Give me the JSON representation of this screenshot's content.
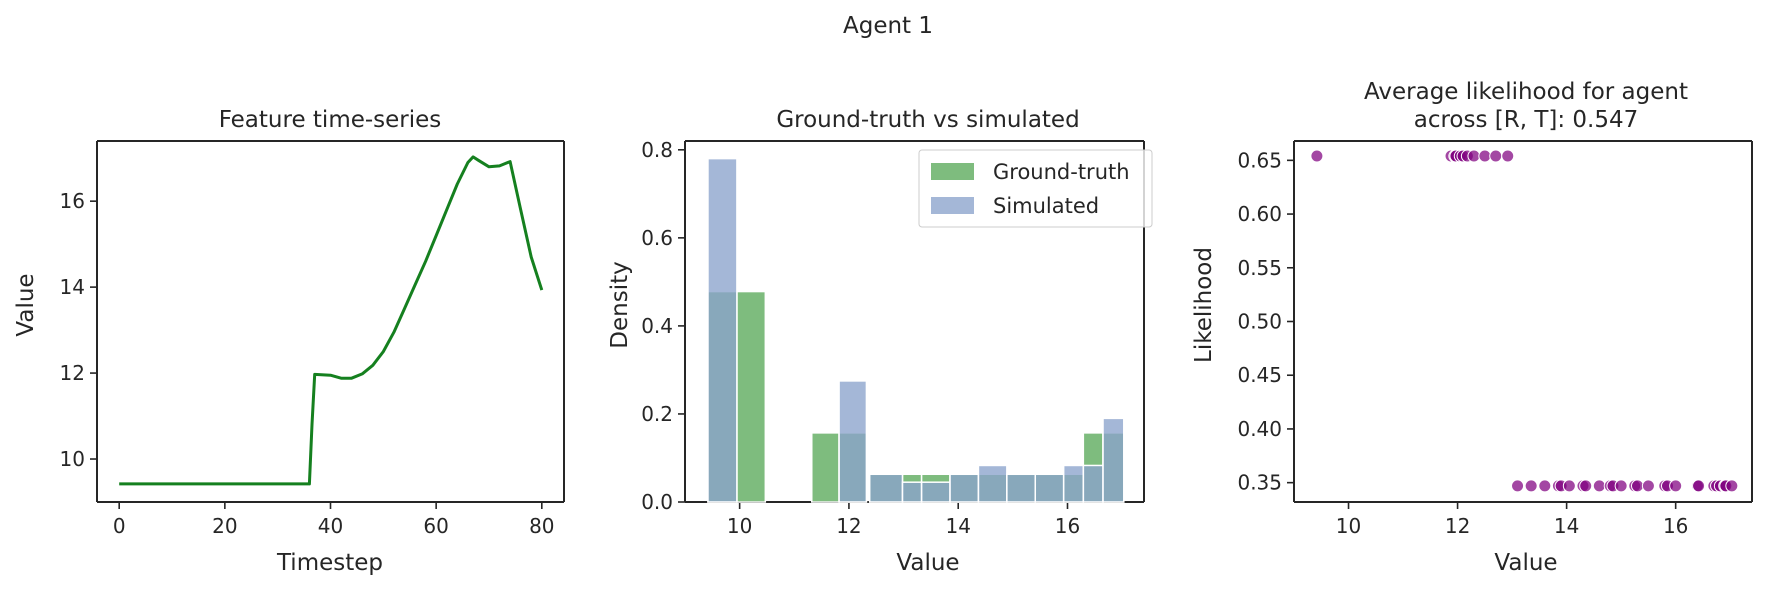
{
  "suptitle": "Agent 1",
  "colors": {
    "line": "#15801f",
    "ground_truth": "#5aa95a",
    "simulated": "#8aa3cc",
    "scatter": "#800080"
  },
  "chart_data": [
    {
      "type": "line",
      "title": "Feature time-series",
      "xlabel": "Timestep",
      "ylabel": "Value",
      "xlim": [
        -4.2,
        84.2
      ],
      "ylim": [
        9.0,
        17.4
      ],
      "xticks": [
        "0",
        "20",
        "40",
        "60",
        "80"
      ],
      "yticks": [
        "10",
        "12",
        "14",
        "16"
      ],
      "series": [
        {
          "x": [
            0,
            10,
            20,
            30,
            36,
            36.5,
            37,
            40,
            42,
            44,
            46,
            48,
            50,
            52,
            54,
            56,
            58,
            60,
            62,
            64,
            66,
            67,
            68,
            70,
            72,
            74,
            76,
            78,
            80
          ],
          "y": [
            9.42,
            9.42,
            9.42,
            9.42,
            9.42,
            10.8,
            11.97,
            11.95,
            11.88,
            11.88,
            11.98,
            12.18,
            12.5,
            12.95,
            13.5,
            14.05,
            14.6,
            15.2,
            15.8,
            16.4,
            16.9,
            17.03,
            16.95,
            16.8,
            16.82,
            16.92,
            15.8,
            14.7,
            13.93
          ]
        }
      ]
    },
    {
      "type": "bar",
      "title": "Ground-truth vs simulated",
      "xlabel": "Value",
      "ylabel": "Density",
      "xlim": [
        9.0,
        17.4
      ],
      "ylim": [
        0,
        0.82
      ],
      "xticks": [
        "10",
        "12",
        "14",
        "16"
      ],
      "yticks": [
        "0.0",
        "0.2",
        "0.4",
        "0.6",
        "0.8"
      ],
      "legend_position": "top-right",
      "series": [
        {
          "name": "Ground-truth",
          "bins": [
            [
              9.42,
              9.95
            ],
            [
              9.95,
              10.47
            ],
            [
              11.32,
              11.82
            ],
            [
              11.82,
              12.32
            ],
            [
              12.38,
              12.98
            ],
            [
              12.98,
              13.33
            ],
            [
              13.33,
              13.85
            ],
            [
              13.85,
              14.37
            ],
            [
              14.37,
              14.89
            ],
            [
              14.89,
              15.41
            ],
            [
              15.41,
              15.93
            ],
            [
              15.93,
              16.29
            ],
            [
              16.29,
              16.65
            ],
            [
              16.65,
              17.03
            ]
          ],
          "values": [
            0.478,
            0.478,
            0.157,
            0.157,
            0.063,
            0.063,
            0.063,
            0.063,
            0.063,
            0.063,
            0.063,
            0.063,
            0.157,
            0.157
          ]
        },
        {
          "name": "Simulated",
          "bins": [
            [
              9.42,
              9.95
            ],
            [
              11.82,
              12.32
            ],
            [
              12.38,
              12.98
            ],
            [
              12.98,
              13.33
            ],
            [
              13.33,
              13.85
            ],
            [
              13.85,
              14.37
            ],
            [
              14.37,
              14.89
            ],
            [
              14.89,
              15.41
            ],
            [
              15.41,
              15.93
            ],
            [
              15.93,
              16.29
            ],
            [
              16.29,
              16.65
            ],
            [
              16.65,
              17.03
            ]
          ],
          "values": [
            0.78,
            0.275,
            0.063,
            0.045,
            0.045,
            0.063,
            0.083,
            0.063,
            0.063,
            0.083,
            0.083,
            0.19
          ]
        }
      ]
    },
    {
      "type": "scatter",
      "title": "Average likelihood for agent\nacross [R, T]: 0.547",
      "xlabel": "Value",
      "ylabel": "Likelihood",
      "xlim": [
        9.0,
        17.4
      ],
      "ylim": [
        0.332,
        0.668
      ],
      "xticks": [
        "10",
        "12",
        "14",
        "16"
      ],
      "yticks": [
        "0.35",
        "0.40",
        "0.45",
        "0.50",
        "0.55",
        "0.60",
        "0.65"
      ],
      "points": [
        {
          "x": 9.42,
          "y": 0.654
        },
        {
          "x": 11.88,
          "y": 0.654
        },
        {
          "x": 11.95,
          "y": 0.654
        },
        {
          "x": 11.97,
          "y": 0.654
        },
        {
          "x": 12.05,
          "y": 0.654
        },
        {
          "x": 12.1,
          "y": 0.654
        },
        {
          "x": 12.18,
          "y": 0.654
        },
        {
          "x": 12.3,
          "y": 0.654
        },
        {
          "x": 12.5,
          "y": 0.654
        },
        {
          "x": 12.7,
          "y": 0.654
        },
        {
          "x": 12.92,
          "y": 0.654
        },
        {
          "x": 13.1,
          "y": 0.347
        },
        {
          "x": 13.35,
          "y": 0.347
        },
        {
          "x": 13.6,
          "y": 0.347
        },
        {
          "x": 13.85,
          "y": 0.347
        },
        {
          "x": 13.9,
          "y": 0.347
        },
        {
          "x": 14.05,
          "y": 0.347
        },
        {
          "x": 14.3,
          "y": 0.347
        },
        {
          "x": 14.35,
          "y": 0.347
        },
        {
          "x": 14.6,
          "y": 0.347
        },
        {
          "x": 14.8,
          "y": 0.347
        },
        {
          "x": 14.85,
          "y": 0.347
        },
        {
          "x": 15.0,
          "y": 0.347
        },
        {
          "x": 15.25,
          "y": 0.347
        },
        {
          "x": 15.3,
          "y": 0.347
        },
        {
          "x": 15.5,
          "y": 0.347
        },
        {
          "x": 15.8,
          "y": 0.347
        },
        {
          "x": 15.85,
          "y": 0.347
        },
        {
          "x": 16.0,
          "y": 0.347
        },
        {
          "x": 16.4,
          "y": 0.347
        },
        {
          "x": 16.42,
          "y": 0.347
        },
        {
          "x": 16.7,
          "y": 0.347
        },
        {
          "x": 16.75,
          "y": 0.347
        },
        {
          "x": 16.82,
          "y": 0.347
        },
        {
          "x": 16.9,
          "y": 0.347
        },
        {
          "x": 16.92,
          "y": 0.347
        },
        {
          "x": 17.03,
          "y": 0.347
        }
      ]
    }
  ]
}
